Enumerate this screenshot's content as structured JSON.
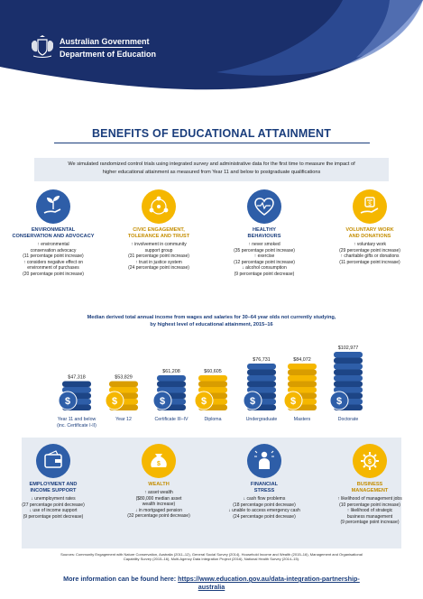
{
  "header": {
    "org_line1": "Australian Government",
    "org_line2": "Department of Education"
  },
  "title": "BENEFITS OF EDUCATIONAL ATTAINMENT",
  "intro": {
    "line1": "We simulated randomized control trials using integrated survey and administrative data for the first time to measure the impact of",
    "line2": "higher educational attainment as measured from Year 11 and below to postgraduate qualifications"
  },
  "colors": {
    "navy": "#1a3d7c",
    "blue": "#2e5ea8",
    "yellow": "#f5b700",
    "light_blue_panel": "#e6ebf2"
  },
  "top_categories": [
    {
      "icon": "hand-plant-icon",
      "title_lines": [
        "ENVIRONMENTAL",
        "CONSERVATION AND ADVOCACY"
      ],
      "lines": [
        {
          "arrow": "↑",
          "text": "environmental"
        },
        {
          "arrow": "",
          "text": "conservation advocacy"
        },
        {
          "arrow": "",
          "text": "(11 percentage point increase)"
        },
        {
          "arrow": "↑",
          "text": "considers negative effect on"
        },
        {
          "arrow": "",
          "text": "environment of purchases"
        },
        {
          "arrow": "",
          "text": "(20 percentage point increase)"
        }
      ]
    },
    {
      "icon": "community-network-icon",
      "title_lines": [
        "CIVIC ENGAGEMENT,",
        "TOLERANCE AND TRUST"
      ],
      "lines": [
        {
          "arrow": "↑",
          "text": "involvement in community"
        },
        {
          "arrow": "",
          "text": "support group"
        },
        {
          "arrow": "",
          "text": "(31 percentage point increase)"
        },
        {
          "arrow": "↑",
          "text": "trust in justice system"
        },
        {
          "arrow": "",
          "text": "(24 percentage point increase)"
        }
      ]
    },
    {
      "icon": "heartbeat-icon",
      "title_lines": [
        "HEALTHY",
        "BEHAVIOURS"
      ],
      "lines": [
        {
          "arrow": "↑",
          "text": "never smoked"
        },
        {
          "arrow": "",
          "text": "(35 percentage point increase)"
        },
        {
          "arrow": "↑",
          "text": "exercise"
        },
        {
          "arrow": "",
          "text": "(12 percentage point increase)"
        },
        {
          "arrow": "↓",
          "text": "alcohol consumption"
        },
        {
          "arrow": "",
          "text": "(9 percentage point decrease)"
        }
      ]
    },
    {
      "icon": "donation-hand-icon",
      "title_lines": [
        "VOLUNTARY WORK",
        "AND DONATIONS"
      ],
      "lines": [
        {
          "arrow": "↑",
          "text": "voluntary work"
        },
        {
          "arrow": "",
          "text": "(29 percentage point increase)"
        },
        {
          "arrow": "↑",
          "text": "charitable gifts or donations"
        },
        {
          "arrow": "",
          "text": "(11 percentage point increase)"
        }
      ]
    }
  ],
  "chart_title": {
    "line1": "Median derived total annual income from wages and salaries for 30–64 year olds not currently studying,",
    "line2": "by highest level of educational attainment, 2015–16"
  },
  "chart_data": {
    "type": "bar",
    "title": "Median derived total annual income from wages and salaries for 30–64 year olds not currently studying, by highest level of educational attainment, 2015–16",
    "categories": [
      "Year 11 and below (inc. Certificate I-II)",
      "Year 12",
      "Certificate III–IV",
      "Diploma",
      "Undergraduate",
      "Masters",
      "Doctorate"
    ],
    "category_labels": [
      [
        "Year 11 and below",
        "(inc. Certificate I-II)"
      ],
      [
        "Year 12"
      ],
      [
        "Certificate III–IV"
      ],
      [
        "Diploma"
      ],
      [
        "Undergraduate"
      ],
      [
        "Masters"
      ],
      [
        "Doctorate"
      ]
    ],
    "values": [
      47318,
      53829,
      61208,
      60605,
      76731,
      84072,
      102977
    ],
    "value_labels": [
      "$47,318",
      "$53,829",
      "$61,208",
      "$60,605",
      "$76,731",
      "$84,072",
      "$102,977"
    ],
    "bar_colors": [
      "blue",
      "yellow",
      "blue",
      "yellow",
      "blue",
      "yellow",
      "blue"
    ],
    "style": "stacked-coins",
    "ylim": [
      0,
      110000
    ]
  },
  "bottom_categories": [
    {
      "icon": "wallet-icon",
      "title_lines": [
        "EMPLOYMENT AND",
        "INCOME SUPPORT"
      ],
      "lines": [
        {
          "arrow": "↓",
          "text": "unemployment rates"
        },
        {
          "arrow": "",
          "text": "(27 percentage point decrease)"
        },
        {
          "arrow": "↓",
          "text": "use of income support"
        },
        {
          "arrow": "",
          "text": "(9 percentage point decrease)"
        }
      ]
    },
    {
      "icon": "money-bag-icon",
      "title_lines": [
        "WEALTH"
      ],
      "lines": [
        {
          "arrow": "↑",
          "text": "asset wealth"
        },
        {
          "arrow": "",
          "text": "($80,000 median asset"
        },
        {
          "arrow": "",
          "text": "wealth increase)"
        },
        {
          "arrow": "↓",
          "text": "in mortgaged pension"
        },
        {
          "arrow": "",
          "text": "(32 percentage point decrease)"
        }
      ]
    },
    {
      "icon": "stressed-person-icon",
      "title_lines": [
        "FINANCIAL",
        "STRESS"
      ],
      "lines": [
        {
          "arrow": "↓",
          "text": "cash flow problems"
        },
        {
          "arrow": "",
          "text": "(18 percentage point decrease)"
        },
        {
          "arrow": "↓",
          "text": "unable to access emergency cash"
        },
        {
          "arrow": "",
          "text": "(24 percentage point decrease)"
        }
      ]
    },
    {
      "icon": "gear-dollar-icon",
      "title_lines": [
        "BUSINESS",
        "MANAGEMENT"
      ],
      "lines": [
        {
          "arrow": "↑",
          "text": "likelihood of management jobs"
        },
        {
          "arrow": "",
          "text": "(10 percentage point increase)"
        },
        {
          "arrow": "↑",
          "text": "likelihood of strategic"
        },
        {
          "arrow": "",
          "text": "business management"
        },
        {
          "arrow": "",
          "text": "(9 percentage point increase)"
        }
      ]
    }
  ],
  "sources": {
    "line1": "Sources: Community Engagement with Nature Conservation, Australia (2011–12), General Social Survey (2014), Household Income and Wealth (2015–16), Management and Organisational",
    "line2": "Capability Survey (2015–16), Multi-Agency Data Integration Project (2016), National Health Survey (2014–15)."
  },
  "more_info": {
    "label": "More information can be found here:",
    "url_line1": "https://www.education.gov.au/data-integration-partnership-",
    "url_line2": "australia"
  }
}
